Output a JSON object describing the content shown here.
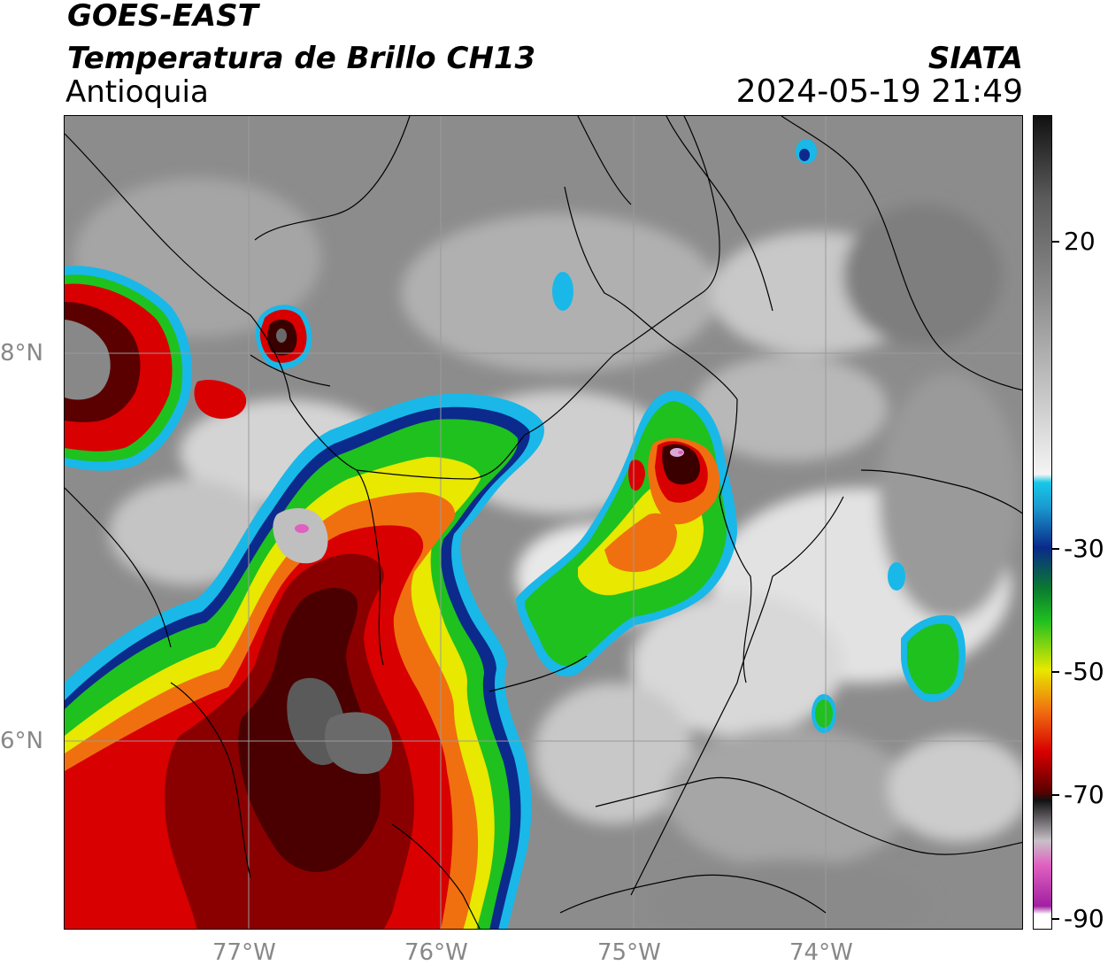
{
  "header": {
    "satellite": "GOES-EAST",
    "product": "Temperatura de Brillo CH13",
    "region": "Antioquia",
    "agency": "SIATA",
    "datetime": "2024-05-19 21:49"
  },
  "map": {
    "lat_labels": [
      "8°N",
      "6°N"
    ],
    "lon_labels": [
      "77°W",
      "76°W",
      "75°W",
      "74°W"
    ],
    "lat_range": [
      5.3,
      9.2
    ],
    "lon_range": [
      -77.95,
      -72.98
    ]
  },
  "colorbar": {
    "tick_labels": [
      "20",
      "-30",
      "-50",
      "-70",
      "-90"
    ],
    "range": [
      -90,
      35
    ],
    "colors": {
      "warm_top": "#111111",
      "gray": "#8c8c8c",
      "white": "#f4f4f4",
      "cyan": "#18c8e8",
      "blue": "#0a2a8a",
      "green": "#20c020",
      "yellow": "#f0f000",
      "orange": "#f07010",
      "red": "#d80000",
      "darkred": "#5a0000",
      "pink": "#e060c0",
      "purple": "#a020a0"
    }
  }
}
